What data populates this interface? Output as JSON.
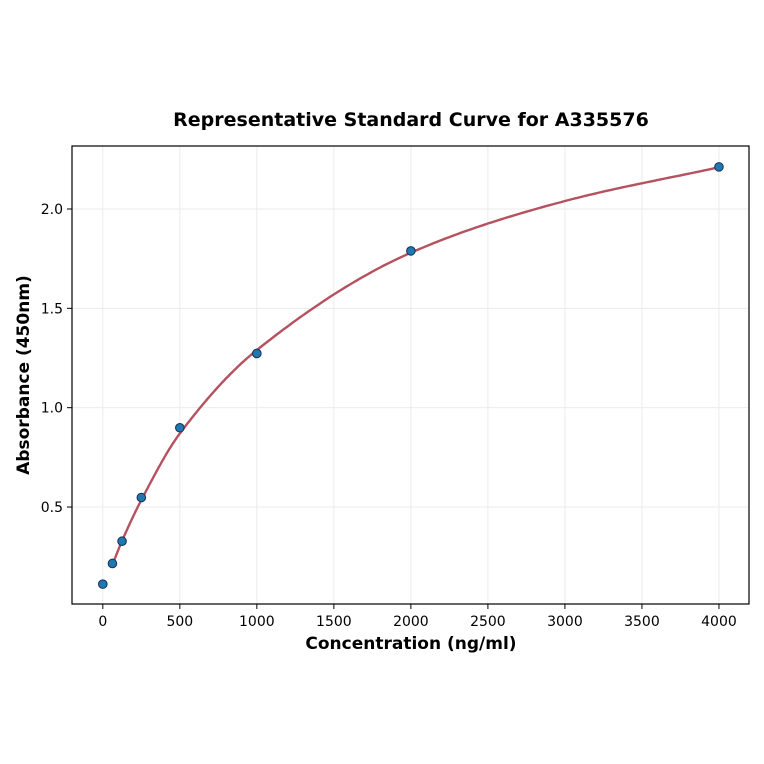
{
  "chart_data": {
    "type": "scatter",
    "title": "Representative Standard Curve for A335576",
    "xlabel": "Concentration (ng/ml)",
    "ylabel": "Absorbance (450nm)",
    "xlim": [
      -200,
      4195
    ],
    "ylim": [
      0.012,
      2.317
    ],
    "xticks": [
      0,
      500,
      1000,
      1500,
      2000,
      2500,
      3000,
      3500,
      4000
    ],
    "yticks": [
      0.5,
      1.0,
      1.5,
      2.0
    ],
    "xtick_labels": [
      "0",
      "500",
      "1000",
      "1500",
      "2000",
      "2500",
      "3000",
      "3500",
      "4000"
    ],
    "ytick_labels": [
      "0.5",
      "1.0",
      "1.5",
      "2.0"
    ],
    "grid": true,
    "points": {
      "x": [
        0,
        62.5,
        125,
        250,
        500,
        1000,
        2000,
        4000
      ],
      "y": [
        0.112,
        0.216,
        0.328,
        0.548,
        0.899,
        1.273,
        1.789,
        2.212
      ]
    },
    "fit_curve": {
      "x": [
        62.5,
        125,
        250,
        500,
        1000,
        2000,
        3000,
        4000
      ],
      "y": [
        0.21,
        0.33,
        0.535,
        0.87,
        1.29,
        1.78,
        2.04,
        2.21
      ]
    },
    "colors": {
      "points": "#1f77b4",
      "point_edge": "#1a2e4a",
      "curve": "#b5525f",
      "grid": "#ebebeb"
    }
  }
}
